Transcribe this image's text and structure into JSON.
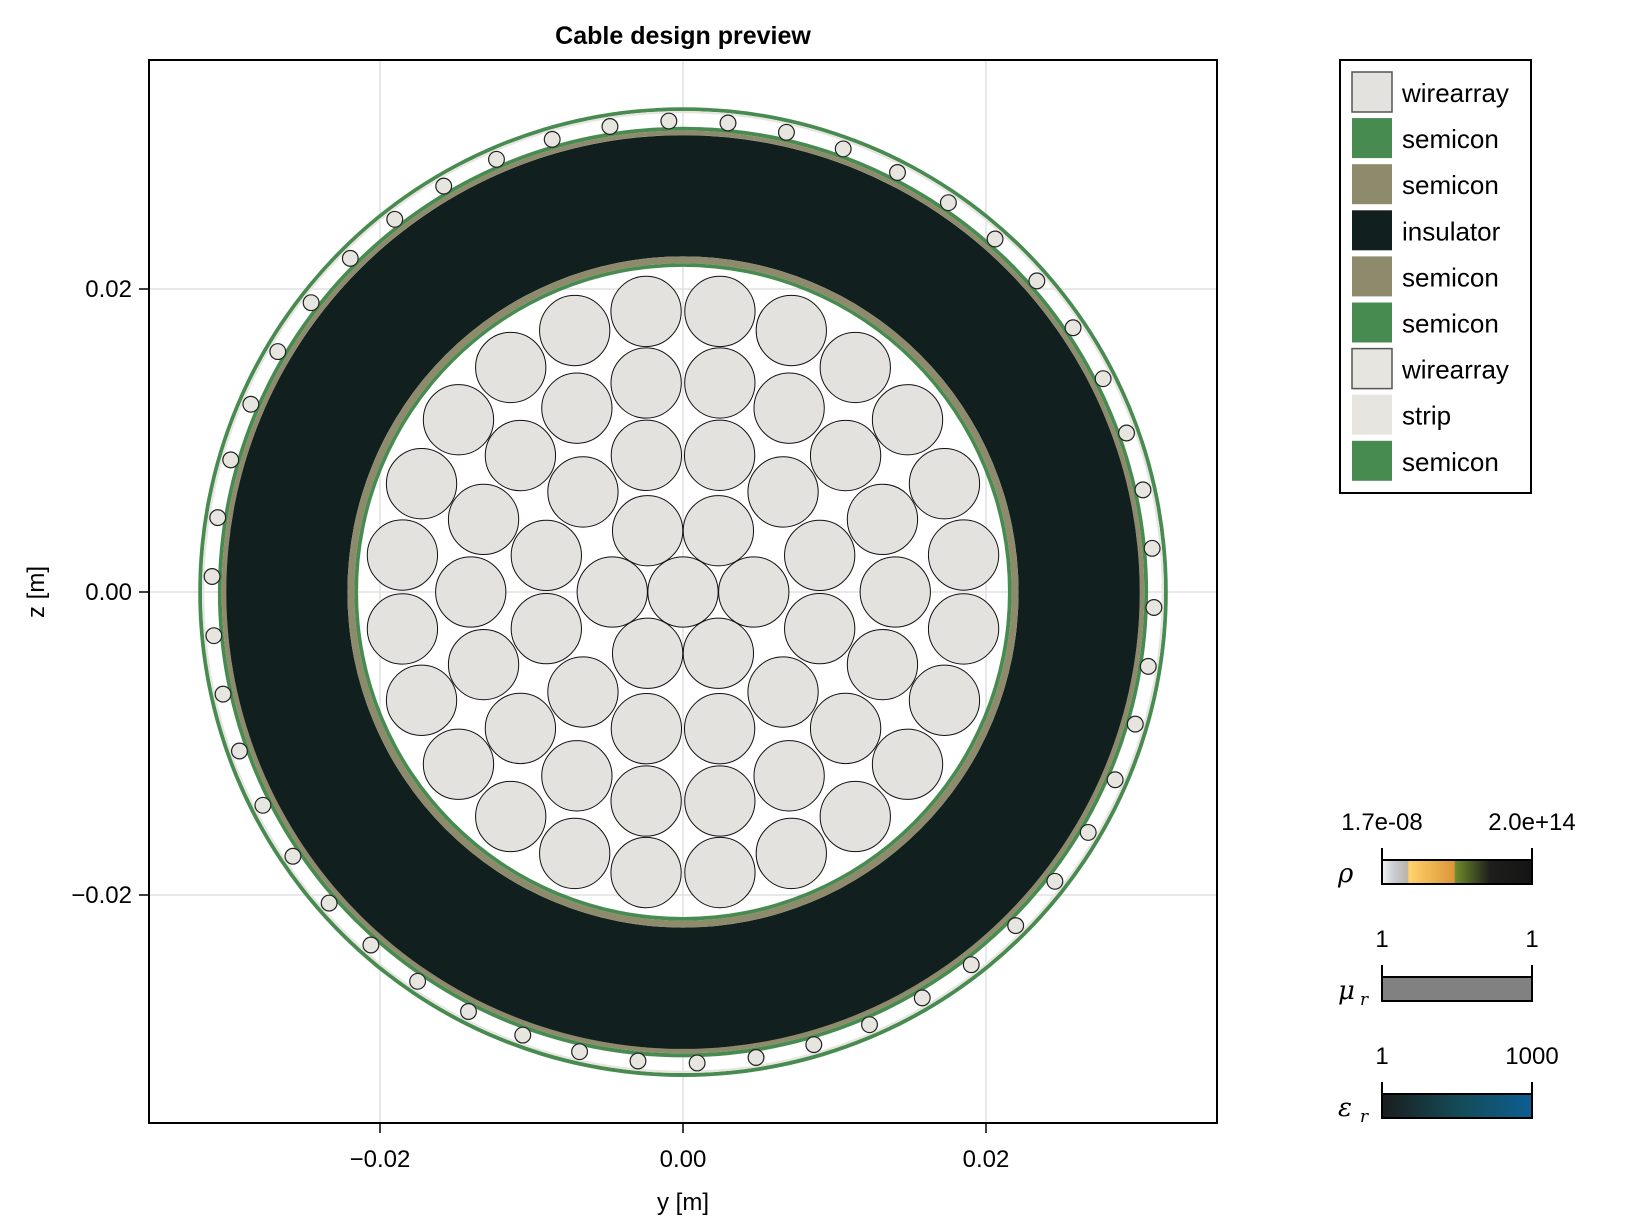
{
  "chart_data": {
    "type": "diagram",
    "title": "Cable design preview",
    "xlabel": "y [m]",
    "ylabel": "z [m]",
    "xlim": [
      -0.0338,
      0.0352
    ],
    "ylim": [
      -0.0351,
      0.0351
    ],
    "xticks": [
      -0.02,
      0.0,
      0.02
    ],
    "yticks": [
      -0.02,
      0.0,
      0.02
    ],
    "xtick_labels": [
      "−0.02",
      "0.00",
      "0.02"
    ],
    "ytick_labels": [
      "−0.02",
      "0.00",
      "0.02"
    ],
    "grid": true,
    "aspect": "equal",
    "layers": [
      {
        "name": "wirearray",
        "kind": "core_conductor",
        "wire_radius": 0.00232,
        "layer_pitch": 0.00467,
        "rings": [
          1,
          6,
          12,
          18,
          24
        ],
        "color": "#e3e2de"
      },
      {
        "name": "semicon",
        "kind": "ring",
        "r_in": 0.02145,
        "r_out": 0.0217,
        "color": "#488b50"
      },
      {
        "name": "semicon",
        "kind": "ring",
        "r_in": 0.0217,
        "r_out": 0.02215,
        "color": "#8e8b6d"
      },
      {
        "name": "insulator",
        "kind": "ring",
        "r_in": 0.02215,
        "r_out": 0.03015,
        "color": "#121f1f"
      },
      {
        "name": "semicon",
        "kind": "ring",
        "r_in": 0.03015,
        "r_out": 0.03045,
        "color": "#8e8b6d"
      },
      {
        "name": "semicon",
        "kind": "ring",
        "r_in": 0.03045,
        "r_out": 0.0307,
        "color": "#488b50"
      },
      {
        "name": "wirearray",
        "kind": "screen_wires",
        "count": 50,
        "center_radius": 0.0311,
        "wire_radius": 0.00052,
        "color": "#e7e5e0"
      },
      {
        "name": "strip",
        "kind": "ring",
        "r_in": 0.0316,
        "r_out": 0.03175,
        "color": "#e7e5e0"
      },
      {
        "name": "semicon",
        "kind": "ring",
        "r_in": 0.03175,
        "r_out": 0.032,
        "color": "#488b50"
      }
    ],
    "legend": {
      "position": "right-top",
      "entries": [
        {
          "label": "wirearray",
          "color": "#e3e2de",
          "outlined": true
        },
        {
          "label": "semicon",
          "color": "#488b50",
          "outlined": false
        },
        {
          "label": "semicon",
          "color": "#8e8b6d",
          "outlined": false
        },
        {
          "label": "insulator",
          "color": "#121f1f",
          "outlined": false
        },
        {
          "label": "semicon",
          "color": "#8e8b6d",
          "outlined": false
        },
        {
          "label": "semicon",
          "color": "#488b50",
          "outlined": false
        },
        {
          "label": "wirearray",
          "color": "#e7e5e0",
          "outlined": true
        },
        {
          "label": "strip",
          "color": "#e7e5e0",
          "outlined": false
        },
        {
          "label": "semicon",
          "color": "#488b50",
          "outlined": false
        }
      ]
    },
    "colorbars": [
      {
        "symbol": "ρ",
        "min_label": "1.7e-08",
        "max_label": "2.0e+14",
        "stops": [
          [
            "0",
            "#f2f2f2"
          ],
          [
            "0.08",
            "#c9ccd2"
          ],
          [
            "0.17",
            "#b8b4a8"
          ],
          [
            "0.18",
            "#ffd36a"
          ],
          [
            "0.48",
            "#dd9538"
          ],
          [
            "0.49",
            "#6c8a2a"
          ],
          [
            "0.72",
            "#1e1f1c"
          ],
          [
            "1",
            "#141414"
          ]
        ]
      },
      {
        "symbol": "μ",
        "sub": "r",
        "min_label": "1",
        "max_label": "1",
        "stops": [
          [
            "0",
            "#808180"
          ],
          [
            "1",
            "#808180"
          ]
        ]
      },
      {
        "symbol": "ε",
        "sub": "r",
        "min_label": "1",
        "max_label": "1000",
        "stops": [
          [
            "0",
            "#1b1d1e"
          ],
          [
            "0.5",
            "#144a55"
          ],
          [
            "1",
            "#0d5e93"
          ]
        ]
      }
    ]
  }
}
